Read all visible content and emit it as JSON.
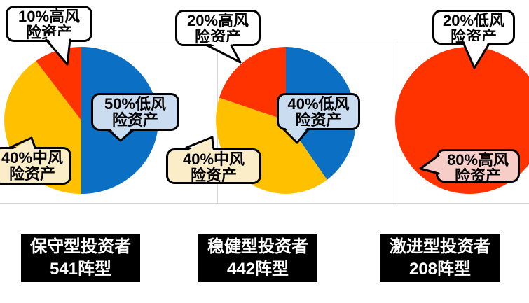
{
  "page": {
    "background": "#ffffff",
    "grid_color": "#d6d6d6"
  },
  "chart_data": [
    {
      "type": "pie",
      "title": "保守型投资者 541阵型",
      "labels": [
        "低风险资产",
        "中风险资产",
        "高风险资产"
      ],
      "values": [
        50,
        40,
        10
      ],
      "colors": [
        "#0b70c4",
        "#ffc000",
        "#ff3300"
      ],
      "start_angle": 0,
      "direction": "clockwise",
      "legend": "none",
      "data_labels": "callouts"
    },
    {
      "type": "pie",
      "title": "稳健型投资者 442阵型",
      "labels": [
        "低风险资产",
        "中风险资产",
        "高风险资产"
      ],
      "values": [
        40,
        40,
        20
      ],
      "colors": [
        "#0b70c4",
        "#ffc000",
        "#ff3300"
      ],
      "start_angle": 0,
      "direction": "clockwise",
      "legend": "none",
      "data_labels": "callouts"
    },
    {
      "type": "pie",
      "title": "激进型投资者 208阵型",
      "labels": [
        "高风险资产",
        "低风险资产"
      ],
      "values": [
        80,
        20
      ],
      "colors": [
        "#ff3300",
        "#ff3300"
      ],
      "start_angle": 0,
      "direction": "clockwise",
      "legend": "none",
      "data_labels": "callouts"
    }
  ],
  "charts": [
    {
      "footer": {
        "lines": [
          "保守型投资者",
          "541阵型"
        ],
        "bg": "#000000",
        "fg": "#ffffff"
      },
      "callouts": [
        {
          "lines": [
            "10%高风",
            "险资产"
          ],
          "bg": "#ffffff"
        },
        {
          "lines": [
            "50%低风",
            "险资产"
          ],
          "bg": "#cadcf0"
        },
        {
          "lines": [
            "40%中风",
            "险资产"
          ],
          "bg": "#fcedc9"
        }
      ]
    },
    {
      "footer": {
        "lines": [
          "稳健型投资者",
          "442阵型"
        ],
        "bg": "#000000",
        "fg": "#ffffff"
      },
      "callouts": [
        {
          "lines": [
            "20%高风",
            "险资产"
          ],
          "bg": "#ffffff"
        },
        {
          "lines": [
            "40%低风",
            "险资产"
          ],
          "bg": "#cadcf0"
        },
        {
          "lines": [
            "40%中风",
            "险资产"
          ],
          "bg": "#fcedc9"
        }
      ]
    },
    {
      "footer": {
        "lines": [
          "激进型投资者",
          "208阵型"
        ],
        "bg": "#000000",
        "fg": "#ffffff"
      },
      "callouts": [
        {
          "lines": [
            "20%低风",
            "险资产"
          ],
          "bg": "#ffffff"
        },
        {
          "lines": [
            "80%高风",
            "险资产"
          ],
          "bg": "#f7cdc8"
        }
      ]
    }
  ]
}
